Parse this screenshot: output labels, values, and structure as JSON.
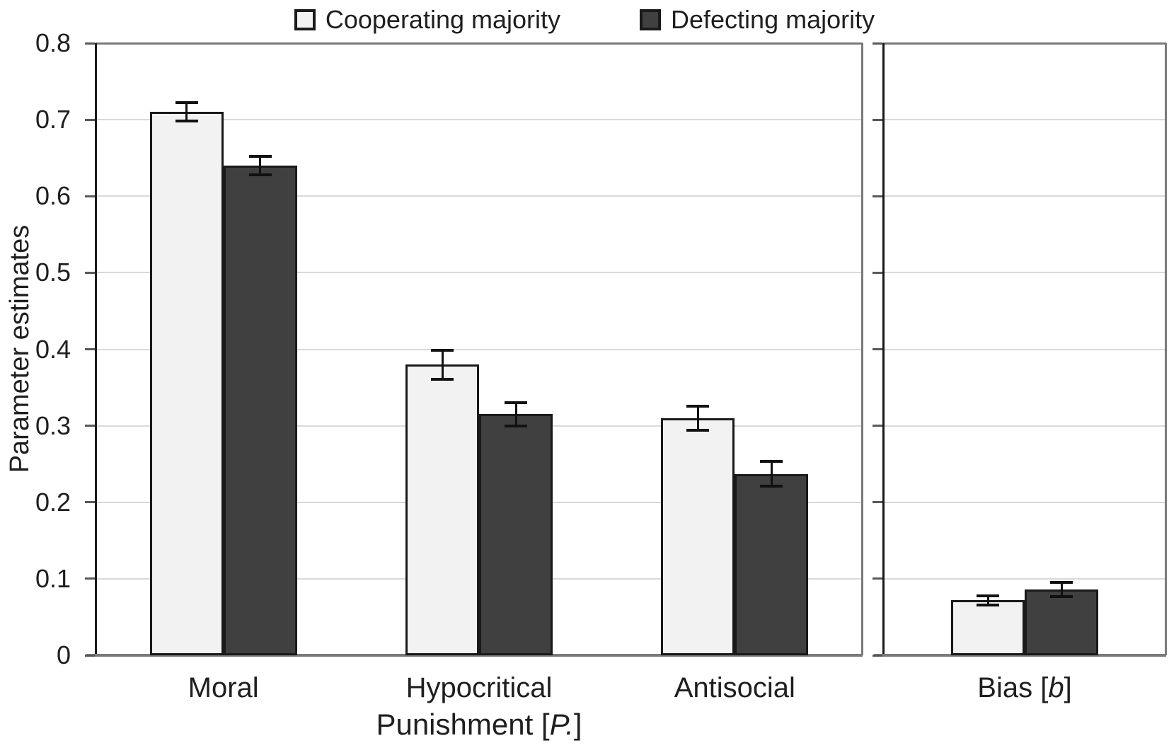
{
  "chart_data": {
    "type": "bar",
    "title": "",
    "ylabel": "Parameter estimates",
    "ylim": [
      0,
      0.8
    ],
    "grid": true,
    "legend_position": "top-center",
    "ytick_labels": [
      "0",
      "0.1",
      "0.2",
      "0.3",
      "0.4",
      "0.5",
      "0.6",
      "0.7",
      "0.8"
    ],
    "series": [
      {
        "name": "Cooperating majority",
        "color": "#f2f2f2",
        "border": "#1a1a1a"
      },
      {
        "name": "Defecting majority",
        "color": "#404040",
        "border": "#1a1a1a"
      }
    ],
    "panels": [
      {
        "name": "punishment-panel",
        "xaxis_title": {
          "pre": "Punishment [",
          "italic": "P.",
          "post": "]"
        },
        "groups": [
          {
            "label": "Moral",
            "values": [
              0.71,
              0.64
            ],
            "errors": [
              0.012,
              0.012
            ]
          },
          {
            "label": "Hypocritical",
            "values": [
              0.38,
              0.315
            ],
            "errors": [
              0.019,
              0.015
            ]
          },
          {
            "label": "Antisocial",
            "values": [
              0.31,
              0.237
            ],
            "errors": [
              0.016,
              0.016
            ]
          }
        ]
      },
      {
        "name": "bias-panel",
        "groups": [
          {
            "label": {
              "pre": "Bias [",
              "italic": "b",
              "post": "]"
            },
            "values": [
              0.072,
              0.086
            ],
            "errors": [
              0.006,
              0.009
            ]
          }
        ]
      }
    ],
    "colors": {
      "gridline": "#d9d9d9",
      "axis": "#1a1a1a",
      "panel_border": "#7a7a7a",
      "tick": "#595959",
      "error_bar": "#111111"
    }
  }
}
